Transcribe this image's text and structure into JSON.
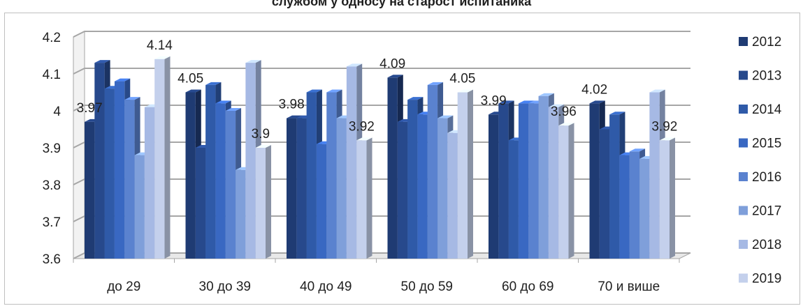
{
  "chart_data": {
    "type": "bar",
    "title": "службом у односу на старост испитаника",
    "categories": [
      "до 29",
      "30 до 39",
      "40 до 49",
      "50 до 59",
      "60 до 69",
      "70 и више"
    ],
    "ylim": [
      3.6,
      4.2
    ],
    "yticks": [
      "3.6",
      "3.7",
      "3.8",
      "3.9",
      "4",
      "4.1",
      "4.2"
    ],
    "grid": true,
    "legend_position": "right",
    "series": [
      {
        "name": "2012",
        "color": "#1f3b73",
        "values": [
          3.97,
          4.05,
          3.98,
          4.09,
          3.99,
          4.02
        ]
      },
      {
        "name": "2013",
        "color": "#27498c",
        "values": [
          4.13,
          3.9,
          3.98,
          3.97,
          4.02,
          3.95
        ]
      },
      {
        "name": "2014",
        "color": "#2f5aa8",
        "values": [
          4.06,
          4.07,
          4.05,
          4.03,
          3.92,
          3.99
        ]
      },
      {
        "name": "2015",
        "color": "#3968c2",
        "values": [
          4.08,
          4.02,
          3.91,
          3.99,
          4.02,
          3.88
        ]
      },
      {
        "name": "2016",
        "color": "#5a82cf",
        "values": [
          4.03,
          4.0,
          4.05,
          4.07,
          4.02,
          3.89
        ]
      },
      {
        "name": "2017",
        "color": "#7f9fda",
        "values": [
          3.88,
          3.84,
          3.98,
          3.98,
          4.04,
          3.87
        ]
      },
      {
        "name": "2018",
        "color": "#a6b9e4",
        "values": [
          4.01,
          4.13,
          4.12,
          3.94,
          4.01,
          4.05
        ]
      },
      {
        "name": "2019",
        "color": "#c4d0ec",
        "values": [
          4.14,
          3.9,
          3.92,
          4.05,
          3.96,
          3.92
        ]
      }
    ],
    "data_labels": [
      {
        "category": 0,
        "series": 0,
        "text": "3.97"
      },
      {
        "category": 0,
        "series": 7,
        "text": "4.14"
      },
      {
        "category": 1,
        "series": 0,
        "text": "4.05"
      },
      {
        "category": 1,
        "series": 7,
        "text": "3.9"
      },
      {
        "category": 2,
        "series": 0,
        "text": "3.98"
      },
      {
        "category": 2,
        "series": 7,
        "text": "3.92"
      },
      {
        "category": 3,
        "series": 0,
        "text": "4.09"
      },
      {
        "category": 3,
        "series": 7,
        "text": "4.05"
      },
      {
        "category": 4,
        "series": 0,
        "text": "3.99"
      },
      {
        "category": 4,
        "series": 7,
        "text": "3.96"
      },
      {
        "category": 5,
        "series": 0,
        "text": "4.02"
      },
      {
        "category": 5,
        "series": 7,
        "text": "3.92"
      }
    ]
  }
}
